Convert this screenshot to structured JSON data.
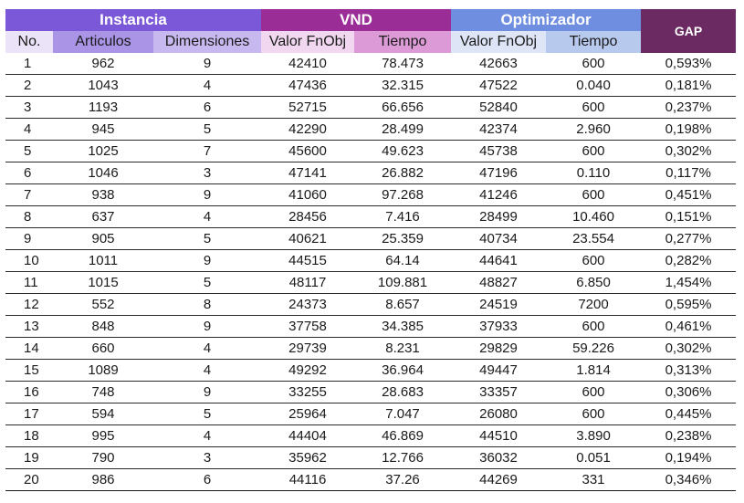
{
  "header": {
    "groups": {
      "instancia": "Instancia",
      "vnd": "VND",
      "optimizador": "Optimizador",
      "gap": "GAP"
    },
    "columns": {
      "no": "No.",
      "articulos": "Articulos",
      "dimensiones": "Dimensiones",
      "vnd_valor": "Valor FnObj",
      "vnd_tiempo": "Tiempo",
      "opt_valor": "Valor FnObj",
      "opt_tiempo": "Tiempo"
    }
  },
  "rows": [
    [
      "1",
      "962",
      "9",
      "42410",
      "78.473",
      "42663",
      "600",
      "0,593%"
    ],
    [
      "2",
      "1043",
      "4",
      "47436",
      "32.315",
      "47522",
      "0.040",
      "0,181%"
    ],
    [
      "3",
      "1193",
      "6",
      "52715",
      "66.656",
      "52840",
      "600",
      "0,237%"
    ],
    [
      "4",
      "945",
      "5",
      "42290",
      "28.499",
      "42374",
      "2.960",
      "0,198%"
    ],
    [
      "5",
      "1025",
      "7",
      "45600",
      "49.623",
      "45738",
      "600",
      "0,302%"
    ],
    [
      "6",
      "1046",
      "3",
      "47141",
      "26.882",
      "47196",
      "0.110",
      "0,117%"
    ],
    [
      "7",
      "938",
      "9",
      "41060",
      "97.268",
      "41246",
      "600",
      "0,451%"
    ],
    [
      "8",
      "637",
      "4",
      "28456",
      "7.416",
      "28499",
      "10.460",
      "0,151%"
    ],
    [
      "9",
      "905",
      "5",
      "40621",
      "25.359",
      "40734",
      "23.554",
      "0,277%"
    ],
    [
      "10",
      "1011",
      "9",
      "44515",
      "64.14",
      "44641",
      "600",
      "0,282%"
    ],
    [
      "11",
      "1015",
      "5",
      "48117",
      "109.881",
      "48827",
      "6.850",
      "1,454%"
    ],
    [
      "12",
      "552",
      "8",
      "24373",
      "8.657",
      "24519",
      "7200",
      "0,595%"
    ],
    [
      "13",
      "848",
      "9",
      "37758",
      "34.385",
      "37933",
      "600",
      "0,461%"
    ],
    [
      "14",
      "660",
      "4",
      "29739",
      "8.231",
      "29829",
      "59.226",
      "0,302%"
    ],
    [
      "15",
      "1089",
      "4",
      "49292",
      "36.964",
      "49447",
      "1.814",
      "0,313%"
    ],
    [
      "16",
      "748",
      "9",
      "33255",
      "28.683",
      "33357",
      "600",
      "0,306%"
    ],
    [
      "17",
      "594",
      "5",
      "25964",
      "7.047",
      "26080",
      "600",
      "0,445%"
    ],
    [
      "18",
      "995",
      "4",
      "44404",
      "46.869",
      "44510",
      "3.890",
      "0,238%"
    ],
    [
      "19",
      "790",
      "3",
      "35962",
      "12.766",
      "36032",
      "0.051",
      "0,194%"
    ],
    [
      "20",
      "986",
      "6",
      "44116",
      "37.26",
      "44269",
      "331",
      "0,346%"
    ]
  ]
}
